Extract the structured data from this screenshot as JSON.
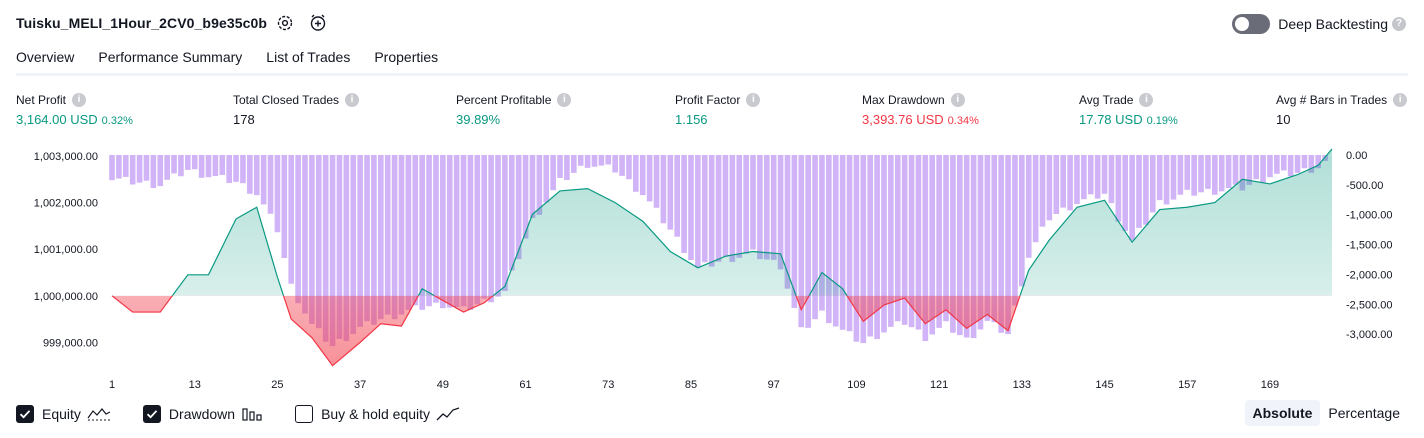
{
  "header": {
    "strategy_title": "Tuisku_MELI_1Hour_2CV0_b9e35c0b",
    "deep_backtesting_label": "Deep Backtesting",
    "deep_backtesting_enabled": false
  },
  "tabs": [
    {
      "label": "Overview",
      "active": true
    },
    {
      "label": "Performance Summary",
      "active": false
    },
    {
      "label": "List of Trades",
      "active": false
    },
    {
      "label": "Properties",
      "active": false
    }
  ],
  "metrics": {
    "net_profit": {
      "title": "Net Profit",
      "value": "3,164.00 USD",
      "pct": "0.32%"
    },
    "total_closed_trades": {
      "title": "Total Closed Trades",
      "value": "178"
    },
    "percent_profitable": {
      "title": "Percent Profitable",
      "value": "39.89%"
    },
    "profit_factor": {
      "title": "Profit Factor",
      "value": "1.156"
    },
    "max_drawdown": {
      "title": "Max Drawdown",
      "value": "3,393.76 USD",
      "pct": "0.34%"
    },
    "avg_trade": {
      "title": "Avg Trade",
      "value": "17.78 USD",
      "pct": "0.19%"
    },
    "avg_bars": {
      "title": "Avg # Bars in Trades",
      "value": "10"
    }
  },
  "legend": {
    "equity_label": "Equity",
    "equity_checked": true,
    "drawdown_label": "Drawdown",
    "drawdown_checked": true,
    "buyhold_label": "Buy & hold equity",
    "buyhold_checked": false
  },
  "view_toggle": {
    "absolute_label": "Absolute",
    "percentage_label": "Percentage",
    "selected": "Absolute"
  },
  "colors": {
    "equity_up": "#089981",
    "equity_down": "#f23645",
    "drawdown_bar": "#d1b3f7",
    "text": "#131722"
  },
  "chart_data": {
    "type": "area",
    "baseline": 1000000,
    "left_ticks": [
      "1,003,000.00",
      "1,002,000.00",
      "1,001,000.00",
      "1,000,000.00",
      "999,000.00"
    ],
    "left_tick_values": [
      1003000,
      1002000,
      1001000,
      1000000,
      999000
    ],
    "right_ticks": [
      "0.00",
      "-500.00",
      "-1,000.00",
      "-1,500.00",
      "-2,000.00",
      "-2,500.00",
      "-3,000.00"
    ],
    "right_tick_values": [
      0,
      -500,
      -1000,
      -1500,
      -2000,
      -2500,
      -3000
    ],
    "x_ticks": [
      "1",
      "13",
      "25",
      "37",
      "49",
      "61",
      "73",
      "85",
      "97",
      "109",
      "121",
      "133",
      "145",
      "157",
      "169"
    ],
    "x_tick_values": [
      1,
      13,
      25,
      37,
      49,
      61,
      73,
      85,
      97,
      109,
      121,
      133,
      145,
      157,
      169
    ],
    "ylim_left": [
      998600,
      1003150
    ],
    "ylim_right": [
      -3450,
      100
    ],
    "xlim": [
      1,
      178
    ],
    "series": [
      {
        "name": "Equity",
        "x": [
          1,
          4,
          8,
          12,
          15,
          19,
          22,
          25,
          27,
          30,
          33,
          37,
          40,
          43,
          46,
          49,
          52,
          55,
          58,
          62,
          66,
          70,
          74,
          78,
          82,
          86,
          90,
          94,
          98,
          101,
          104,
          107,
          110,
          113,
          116,
          119,
          122,
          125,
          128,
          131,
          134,
          137,
          141,
          145,
          149,
          153,
          157,
          161,
          165,
          169,
          173,
          176,
          178
        ],
        "values": [
          1000000,
          999650,
          999650,
          1000450,
          1000450,
          1001650,
          1001900,
          1000400,
          999500,
          999100,
          998500,
          999000,
          999400,
          999350,
          1000150,
          999900,
          999650,
          999850,
          1000200,
          1001750,
          1002250,
          1002300,
          1002000,
          1001600,
          1000950,
          1000600,
          1000850,
          1000950,
          1000900,
          999700,
          1000500,
          1000150,
          999450,
          999800,
          999950,
          999400,
          999700,
          999300,
          999600,
          999250,
          1000550,
          1001200,
          1001900,
          1002050,
          1001150,
          1001850,
          1001900,
          1002000,
          1002500,
          1002400,
          1002600,
          1002800,
          1003150
        ]
      },
      {
        "name": "Drawdown",
        "x": [
          1,
          4,
          8,
          12,
          15,
          19,
          22,
          25,
          27,
          30,
          33,
          37,
          40,
          43,
          46,
          49,
          52,
          55,
          58,
          62,
          66,
          70,
          74,
          78,
          82,
          86,
          90,
          94,
          98,
          101,
          104,
          107,
          110,
          113,
          116,
          119,
          122,
          125,
          128,
          131,
          134,
          137,
          141,
          145,
          149,
          153,
          157,
          161,
          165,
          169,
          173,
          176,
          178
        ],
        "values": [
          -400,
          -450,
          -500,
          -250,
          -350,
          -450,
          -650,
          -1250,
          -2200,
          -2850,
          -3200,
          -2900,
          -2750,
          -2650,
          -2550,
          -2500,
          -2600,
          -2450,
          -2300,
          -1100,
          -450,
          -150,
          -250,
          -650,
          -1250,
          -1900,
          -1750,
          -1650,
          -1850,
          -2950,
          -2650,
          -2950,
          -3150,
          -2950,
          -2800,
          -3050,
          -2850,
          -3100,
          -2800,
          -3000,
          -1700,
          -1050,
          -800,
          -650,
          -1450,
          -800,
          -650,
          -600,
          -550,
          -350,
          -300,
          -200,
          0
        ]
      }
    ]
  }
}
